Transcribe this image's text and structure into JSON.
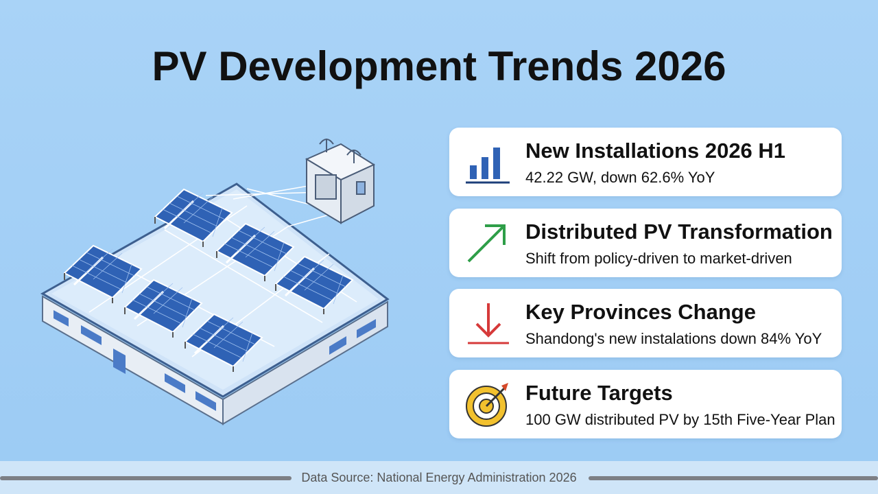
{
  "title": "PV Development Trends 2026",
  "cards": [
    {
      "title": "New Installations 2026 H1",
      "text": "42.22 GW, down 62.6% YoY"
    },
    {
      "title": "Distributed PV Transformation",
      "text": "Shift from policy-driven to market-driven"
    },
    {
      "title": "Key Provinces Change",
      "text": "Shandong's new instalations down 84% YoY"
    },
    {
      "title": "Future Targets",
      "text": "100 GW distributed PV by 15th Five-Year Plan"
    }
  ],
  "footer": {
    "source": "Data Source: National Energy Administration 2026"
  }
}
